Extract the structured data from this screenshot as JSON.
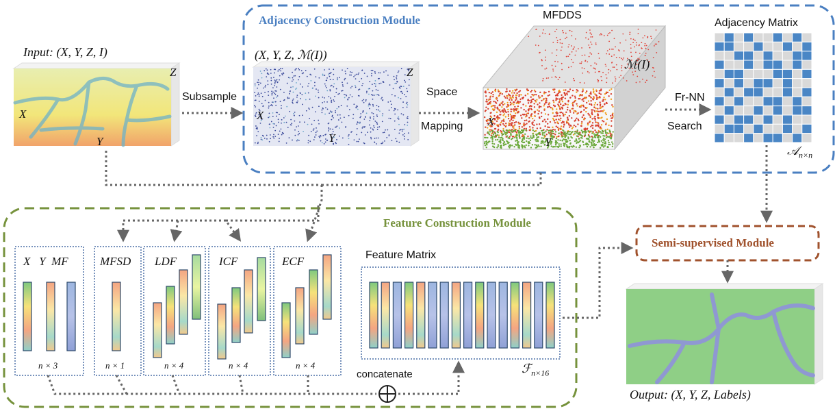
{
  "modules": {
    "adjacency": {
      "title": "Adjacency Construction Module"
    },
    "feature": {
      "title": "Feature Construction Module"
    },
    "semi": {
      "title": "Semi-supervised Module"
    }
  },
  "input": {
    "label": "Input: (X, Y, Z, I)",
    "axis_x": "X",
    "axis_y": "Y",
    "axis_z": "Z"
  },
  "subsample": {
    "label": "Subsample"
  },
  "mapped": {
    "label": "(X, Y, Z, ℳ(I))",
    "axis_x": "X",
    "axis_y": "Y",
    "axis_z": "Z"
  },
  "space_mapping": {
    "line1": "Space",
    "line2": "Mapping"
  },
  "mfdds": {
    "title": "MFDDS",
    "mi": "ℳ(I)",
    "axis_x": "X",
    "axis_y": "Y"
  },
  "frnn": {
    "line1": "Fr-NN",
    "line2": "Search"
  },
  "adjacency_matrix": {
    "title": "Adjacency Matrix",
    "symbol": "𝒜",
    "subscript": "n×n",
    "pattern": [
      "0101001010",
      "1100100101",
      "0011010011",
      "1001011010",
      "0110001101",
      "1010110100",
      "0101100101",
      "1010011010",
      "0100101011",
      "1011010100",
      "0110100101",
      "1001011010"
    ]
  },
  "features": [
    {
      "header": "X   Y  MF",
      "dims": "n × 3"
    },
    {
      "header": "MFSD",
      "dims": "n × 1"
    },
    {
      "header": "LDF",
      "dims": "n × 4"
    },
    {
      "header": "ICF",
      "dims": "n × 4"
    },
    {
      "header": "ECF",
      "dims": "n × 4"
    }
  ],
  "feature_matrix": {
    "title": "Feature Matrix",
    "symbol": "ℱ",
    "subscript": "n×16"
  },
  "concatenate": {
    "label": "concatenate",
    "symbol": "⊕"
  },
  "output": {
    "label": "Output: (X, Y, Z, Labels)"
  },
  "colors": {
    "adjacency_border": "#4a7fc1",
    "adjacency_title": "#4a7fc1",
    "feature_border": "#76923c",
    "feature_title": "#76923c",
    "semi_border": "#a0522d",
    "semi_title": "#a0522d",
    "matrix_blue": "#4a86c5",
    "matrix_grey": "#d9d9d9",
    "dotted_arrow": "#666666"
  }
}
